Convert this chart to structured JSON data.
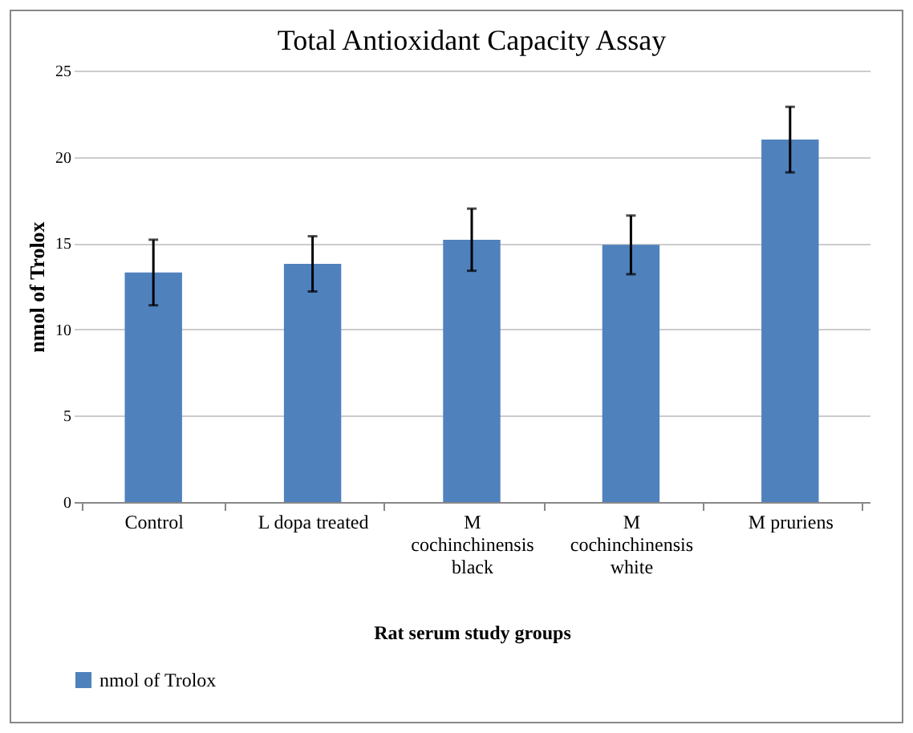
{
  "chart_data": {
    "type": "bar",
    "title": "Total Antioxidant Capacity Assay",
    "xlabel": "Rat serum study groups",
    "ylabel": "nmol of Trolox",
    "categories": [
      "Control",
      "L dopa treated",
      "M cochinchinensis black",
      "M cochinchinensis white",
      "M pruriens"
    ],
    "series": [
      {
        "name": "nmol of Trolox",
        "color": "#4f81bd",
        "values": [
          13.3,
          13.8,
          15.2,
          14.9,
          21.0
        ],
        "errors": [
          1.9,
          1.6,
          1.8,
          1.7,
          1.9
        ]
      }
    ],
    "ylim": [
      0,
      25
    ],
    "yticks": [
      0,
      5,
      10,
      15,
      20,
      25
    ],
    "grid": "y",
    "legend": "bottom"
  }
}
